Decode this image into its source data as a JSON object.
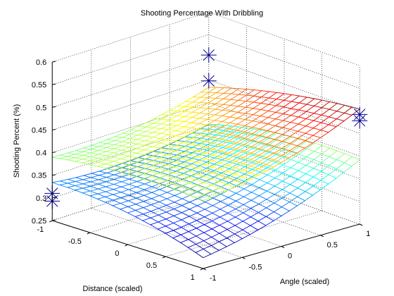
{
  "chart_data": {
    "type": "surface",
    "title": "Shooting Percentage With Dribbling",
    "xlabel": "Distance (scaled)",
    "ylabel": "Angle (scaled)",
    "zlabel": "Shooting Percent (%)",
    "xlim": [
      -1,
      1
    ],
    "ylim": [
      -1,
      1
    ],
    "zlim": [
      0.25,
      0.6
    ],
    "x_ticks": [
      "-1",
      "-0.5",
      "0",
      "0.5",
      "1"
    ],
    "y_ticks": [
      "-1",
      "-0.5",
      "0",
      "0.5",
      "1"
    ],
    "z_ticks": [
      "0.25",
      "0.3",
      "0.35",
      "0.4",
      "0.45",
      "0.5",
      "0.55",
      "0.6"
    ],
    "grid": true,
    "colormap": "jet",
    "mesh_resolution": 21,
    "series": [
      {
        "surface": "upper",
        "model": "z = c0 + cx*x + cy*y + cxy*x*y + cxx*x^2 + cyy*y^2",
        "coefficients": {
          "c0": 0.425,
          "cx": 0.02,
          "cy": 0.037,
          "cxy": 0.015,
          "cxx": -0.01,
          "cyy": 0.017
        }
      },
      {
        "surface": "lower",
        "model": "z = c0 + cx*x + cy*y + cxy*x*y + cxx*x^2 + cyy*y^2",
        "coefficients": {
          "c0": 0.338,
          "cx": -0.005,
          "cy": 0.034,
          "cxy": 0.025,
          "cxx": -0.016,
          "cyy": 0.016
        }
      }
    ],
    "observed_points": [
      {
        "x": -1,
        "y": -1,
        "z": 0.31
      },
      {
        "x": -1,
        "y": -1,
        "z": 0.293
      },
      {
        "x": -1,
        "y": 1,
        "z": 0.505
      },
      {
        "x": -1,
        "y": 1,
        "z": 0.448
      },
      {
        "x": 1,
        "y": 1,
        "z": 0.492
      },
      {
        "x": 1,
        "y": 1,
        "z": 0.478
      }
    ],
    "marker": "asterisk",
    "marker_color": "#00008f"
  }
}
